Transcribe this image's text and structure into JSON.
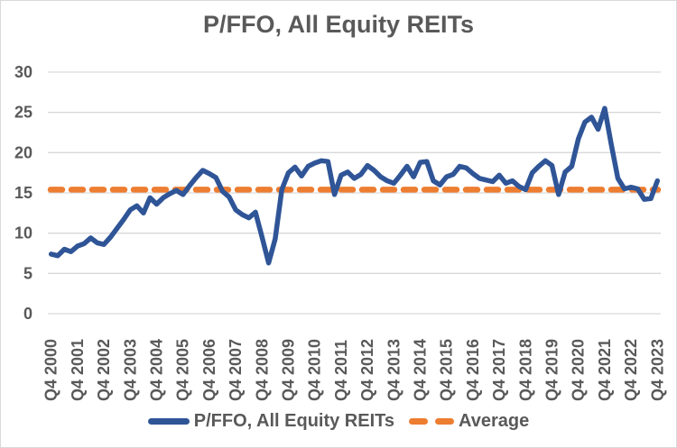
{
  "title": "P/FFO, All Equity REITs",
  "legend": {
    "series_label": "P/FFO, All Equity REITs",
    "average_label": "Average"
  },
  "colors": {
    "series": "#2F5597",
    "average": "#ED7D31",
    "text": "#595959",
    "gridline": "#D9D9D9"
  },
  "chart_data": {
    "type": "line",
    "title": "P/FFO, All Equity REITs",
    "x_start": "Q4 2000",
    "x_frequency": "quarterly",
    "x_tick_every": 4,
    "x_tick_labels": [
      "Q4 2000",
      "Q4 2001",
      "Q4 2002",
      "Q4 2003",
      "Q4 2004",
      "Q4 2005",
      "Q4 2006",
      "Q4 2007",
      "Q4 2008",
      "Q4 2009",
      "Q4 2010",
      "Q4 2011",
      "Q4 2012",
      "Q4 2013",
      "Q4 2014",
      "Q4 2015",
      "Q4 2016",
      "Q4 2017",
      "Q4 2018",
      "Q4 2019",
      "Q4 2020",
      "Q4 2021",
      "Q4 2022",
      "Q4 2023"
    ],
    "y_ticks": [
      0,
      5,
      10,
      15,
      20,
      25,
      30
    ],
    "ylim": [
      0,
      30
    ],
    "grid": "horizontal",
    "legend_position": "bottom",
    "series": [
      {
        "name": "P/FFO, All Equity REITs",
        "color": "#2F5597",
        "style": "solid",
        "values": [
          7.4,
          7.2,
          8.0,
          7.7,
          8.4,
          8.7,
          9.4,
          8.8,
          8.6,
          9.5,
          10.6,
          11.7,
          12.9,
          13.4,
          12.5,
          14.4,
          13.6,
          14.4,
          14.9,
          15.3,
          14.8,
          15.9,
          16.9,
          17.8,
          17.4,
          16.9,
          15.2,
          14.5,
          12.9,
          12.3,
          11.9,
          12.6,
          9.5,
          6.3,
          9.3,
          15.4,
          17.5,
          18.2,
          17.1,
          18.3,
          18.7,
          19.0,
          18.9,
          14.8,
          17.2,
          17.6,
          16.8,
          17.3,
          18.4,
          17.8,
          17.0,
          16.5,
          16.2,
          17.2,
          18.3,
          17.0,
          18.8,
          18.9,
          16.5,
          16.0,
          17.0,
          17.3,
          18.3,
          18.1,
          17.4,
          16.8,
          16.6,
          16.4,
          17.2,
          16.2,
          16.5,
          15.8,
          15.4,
          17.5,
          18.3,
          19.0,
          18.4,
          14.8,
          17.6,
          18.3,
          21.7,
          23.8,
          24.4,
          22.9,
          25.5,
          21.0,
          16.8,
          15.5,
          15.7,
          15.5,
          14.2,
          14.3,
          16.5
        ]
      },
      {
        "name": "Average",
        "color": "#ED7D31",
        "style": "dashed",
        "value": 15.4
      }
    ]
  }
}
